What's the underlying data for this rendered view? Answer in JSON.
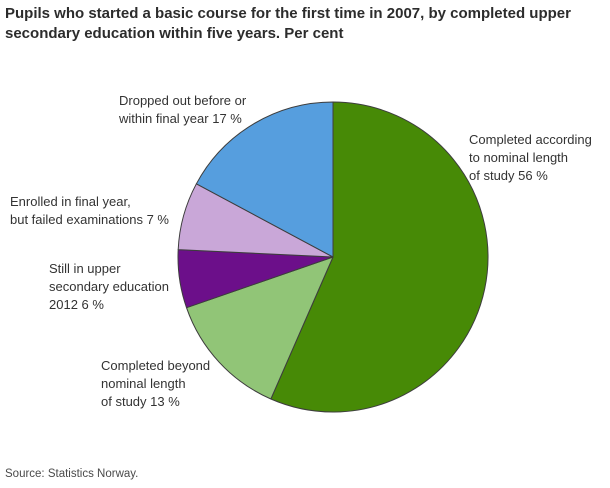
{
  "page": {
    "title": "Pupils who started a basic course for the first time in 2007, by completed upper secondary education within five years. Per cent",
    "source": "Source: Statistics Norway."
  },
  "chart_data": {
    "type": "pie",
    "title": "Pupils who started a basic course for the first time in 2007, by completed upper secondary education within five years. Per cent",
    "unit": "per cent",
    "start_angle": "12 o'clock",
    "direction": "clockwise",
    "legend": "none, direct labels outside slices",
    "stroke_color": "#3d3d3d",
    "slices": [
      {
        "name": "Completed according to nominal length of study",
        "value": 56,
        "color": "#478a06",
        "label_lines": [
          "Completed according",
          "to nominal length",
          "of study 56 %"
        ]
      },
      {
        "name": "Completed beyond nominal length of study",
        "value": 13,
        "color": "#91c577",
        "label_lines": [
          "Completed beyond",
          "nominal length",
          "of study 13 %"
        ]
      },
      {
        "name": "Still in upper secondary education 2012",
        "value": 6,
        "color": "#6c0f8a",
        "label_lines": [
          "Still in upper",
          "secondary education",
          "2012 6 %"
        ]
      },
      {
        "name": "Enrolled in final year, but failed examinations",
        "value": 7,
        "color": "#c9a7d8",
        "label_lines": [
          "Enrolled in final year,",
          "but failed examinations 7 %"
        ]
      },
      {
        "name": "Dropped out before or within final year",
        "value": 17,
        "color": "#569ede",
        "label_lines": [
          "Dropped out before or",
          "within final year 17 %"
        ]
      }
    ]
  }
}
